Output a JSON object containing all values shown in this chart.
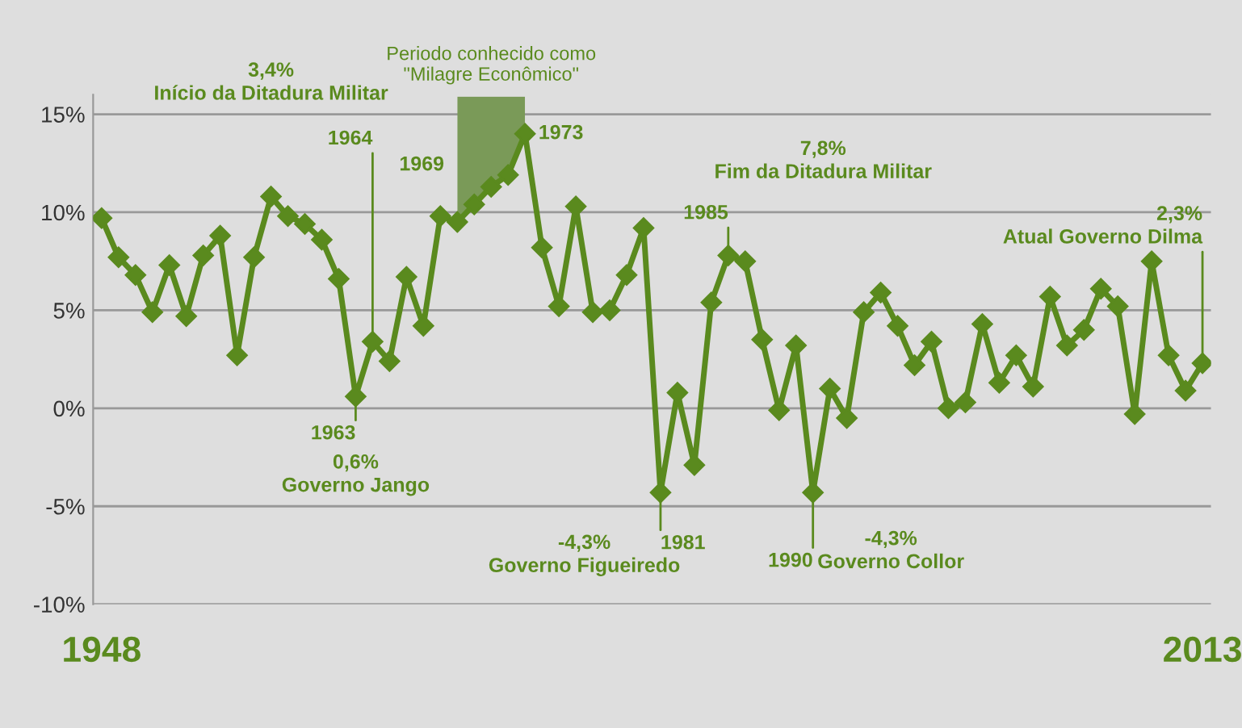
{
  "chart_data": {
    "type": "line",
    "marker": "diamond",
    "line_style": "solid",
    "grid": "y",
    "x": [
      1948,
      1949,
      1950,
      1951,
      1952,
      1953,
      1954,
      1955,
      1956,
      1957,
      1958,
      1959,
      1960,
      1961,
      1962,
      1963,
      1964,
      1965,
      1966,
      1967,
      1968,
      1969,
      1970,
      1971,
      1972,
      1973,
      1974,
      1975,
      1976,
      1977,
      1978,
      1979,
      1980,
      1981,
      1982,
      1983,
      1984,
      1985,
      1986,
      1987,
      1988,
      1989,
      1990,
      1991,
      1992,
      1993,
      1994,
      1995,
      1996,
      1997,
      1998,
      1999,
      2000,
      2001,
      2002,
      2003,
      2004,
      2005,
      2006,
      2007,
      2008,
      2009,
      2010,
      2011,
      2012,
      2013
    ],
    "series": [
      {
        "color": "#5a8a1e",
        "values": [
          9.7,
          7.7,
          6.8,
          4.9,
          7.3,
          4.7,
          7.8,
          8.8,
          2.7,
          7.7,
          10.8,
          9.8,
          9.4,
          8.6,
          6.6,
          0.6,
          3.4,
          2.4,
          6.7,
          4.2,
          9.8,
          9.5,
          10.4,
          11.3,
          11.9,
          14.0,
          8.2,
          5.2,
          10.3,
          4.9,
          5.0,
          6.8,
          9.2,
          -4.3,
          0.8,
          -2.9,
          5.4,
          7.8,
          7.5,
          3.5,
          -0.1,
          3.2,
          -4.3,
          1.0,
          -0.5,
          4.9,
          5.9,
          4.2,
          2.2,
          3.4,
          0.0,
          0.3,
          4.3,
          1.3,
          2.7,
          1.1,
          5.7,
          3.2,
          4.0,
          6.1,
          5.2,
          -0.3,
          7.5,
          2.7,
          0.9,
          2.3
        ]
      }
    ],
    "xlim": [
      1947.5,
      2013.5
    ],
    "xticks": [
      1948,
      2013
    ],
    "ylim": [
      -10,
      16
    ],
    "yticks": [
      {
        "value": 15,
        "label": "15%"
      },
      {
        "value": 10,
        "label": "10%"
      },
      {
        "value": 5,
        "label": "5%"
      },
      {
        "value": 0,
        "label": "0%"
      },
      {
        "value": -5,
        "label": "-5%"
      },
      {
        "value": -10,
        "label": "-10%"
      }
    ],
    "bands": [
      {
        "axis": "x",
        "from": 1969,
        "to": 1973,
        "label": "Periodo conhecido como\n\"Milagre Econômico\"",
        "color": "#7a9a58"
      }
    ],
    "annotations": [
      {
        "text": "1964",
        "x": 1964,
        "y": 3.4
      },
      "3,4%\nInício da Ditadura Militar",
      {
        "text": "1963",
        "x": 1963,
        "y": 0.6
      },
      "0,6%\nGoverno Jango",
      "1969",
      {
        "text": "1973",
        "x": 1973,
        "y": 14.0
      },
      {
        "text": "1981",
        "x": 1981,
        "y": -4.3
      },
      "-4,3%\nGoverno Figueiredo",
      {
        "text": "1985",
        "x": 1985,
        "y": 7.8
      },
      "7,8%\nFim da Ditadura Militar",
      {
        "text": "1990",
        "x": 1990,
        "y": -4.3
      },
      "-4,3%\nGoverno Collor",
      {
        "text": "2,3%\nAtual Governo Dilma",
        "x": 2013,
        "y": 2.3
      }
    ]
  }
}
